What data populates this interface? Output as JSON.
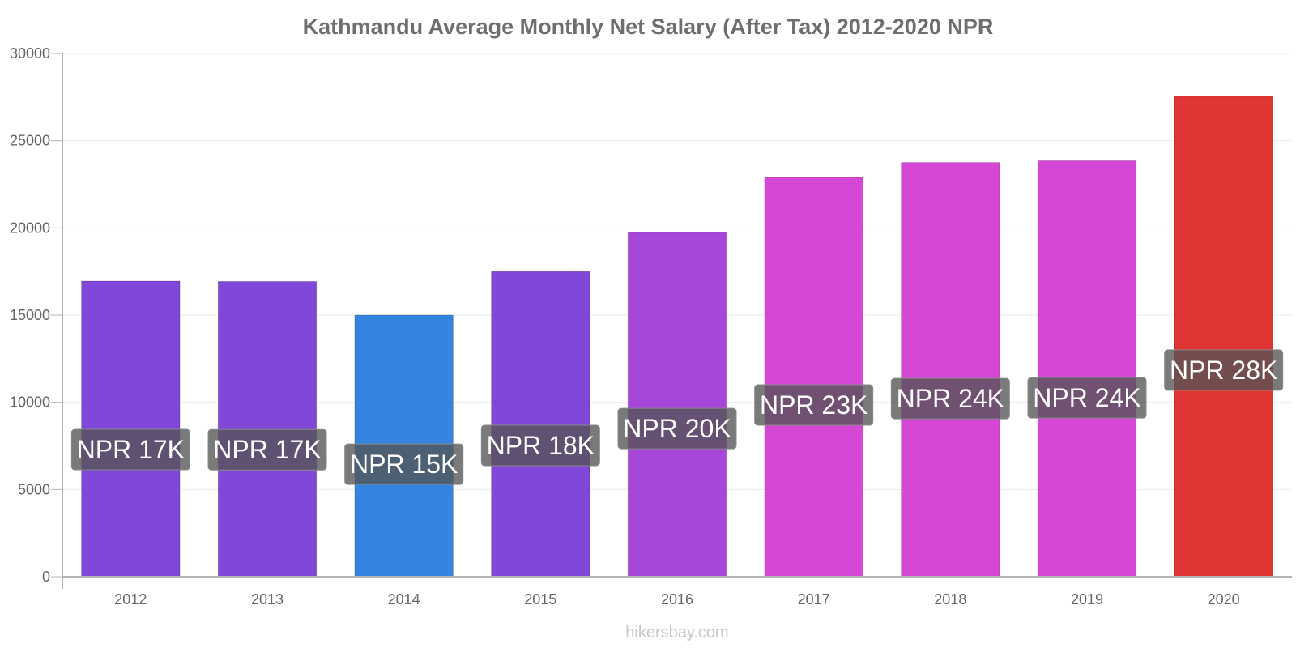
{
  "chart_data": {
    "type": "bar",
    "title": "Kathmandu Average Monthly Net Salary (After Tax) 2012-2020 NPR",
    "xlabel": "",
    "ylabel": "",
    "ylim": [
      0,
      30000
    ],
    "yticks": [
      0,
      5000,
      10000,
      15000,
      20000,
      25000,
      30000
    ],
    "grid": true,
    "categories": [
      "2012",
      "2013",
      "2014",
      "2015",
      "2016",
      "2017",
      "2018",
      "2019",
      "2020"
    ],
    "values": [
      16950,
      16930,
      15000,
      17500,
      19750,
      22900,
      23750,
      23850,
      27550
    ],
    "data_labels": [
      "NPR 17K",
      "NPR 17K",
      "NPR 15K",
      "NPR 18K",
      "NPR 20K",
      "NPR 23K",
      "NPR 24K",
      "NPR 24K",
      "NPR 28K"
    ],
    "colors": [
      "#8047d9",
      "#8047d9",
      "#3584e0",
      "#8047d9",
      "#a647d9",
      "#d647d6",
      "#d647d6",
      "#d647d6",
      "#e03535"
    ],
    "label_box_color": "#555555"
  },
  "footer": {
    "watermark": "hikersbay.com"
  }
}
